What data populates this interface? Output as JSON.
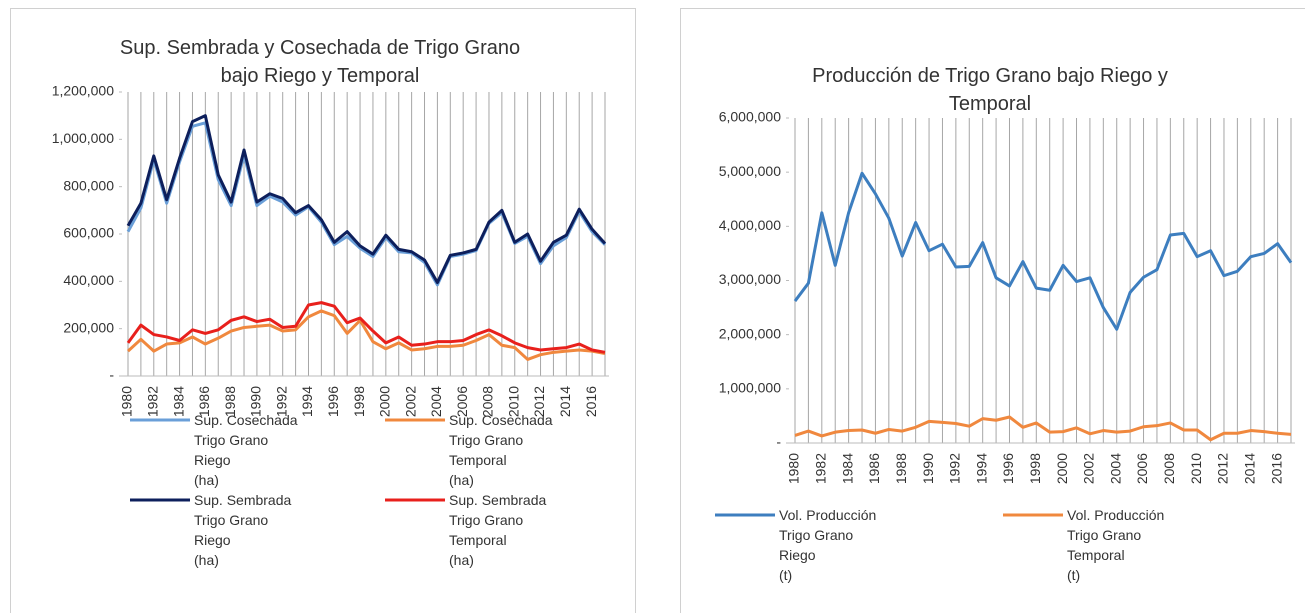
{
  "chart_data": [
    {
      "type": "line",
      "title": "Sup. Sembrada y Cosechada de Trigo Grano\nbajo Riego y Temporal",
      "categories": [
        "1980",
        null,
        "1982",
        null,
        "1984",
        null,
        "1986",
        null,
        "1988",
        null,
        "1990",
        null,
        "1992",
        null,
        "1994",
        null,
        "1996",
        null,
        "1998",
        null,
        "2000",
        null,
        "2002",
        null,
        "2004",
        null,
        "2006",
        null,
        "2008",
        null,
        "2010",
        null,
        "2012",
        null,
        "2014",
        null,
        "2016",
        null
      ],
      "series": [
        {
          "name": "Sup. Cosechada\nTrigo Grano\nRiego\n(ha)",
          "color": "#6a9fd8",
          "values": [
            610000,
            710000,
            915000,
            730000,
            905000,
            1055000,
            1070000,
            830000,
            720000,
            935000,
            720000,
            760000,
            735000,
            680000,
            715000,
            650000,
            555000,
            590000,
            540000,
            505000,
            585000,
            525000,
            520000,
            480000,
            385000,
            505000,
            515000,
            530000,
            645000,
            690000,
            560000,
            590000,
            475000,
            550000,
            585000,
            695000,
            610000,
            555000
          ]
        },
        {
          "name": "Sup. Cosechada\nTrigo Grano\nTemporal\n(ha)",
          "color": "#f0883e",
          "values": [
            105000,
            155000,
            105000,
            135000,
            140000,
            165000,
            135000,
            160000,
            190000,
            205000,
            210000,
            215000,
            190000,
            195000,
            250000,
            275000,
            255000,
            180000,
            235000,
            145000,
            115000,
            140000,
            110000,
            115000,
            125000,
            125000,
            130000,
            150000,
            175000,
            130000,
            120000,
            70000,
            90000,
            100000,
            105000,
            110000,
            105000,
            95000
          ]
        },
        {
          "name": "Sup. Sembrada\nTrigo Grano\nRiego\n(ha)",
          "color": "#0d1f5c",
          "values": [
            635000,
            730000,
            930000,
            745000,
            920000,
            1075000,
            1100000,
            850000,
            735000,
            955000,
            735000,
            770000,
            750000,
            690000,
            720000,
            660000,
            565000,
            610000,
            550000,
            515000,
            595000,
            535000,
            525000,
            490000,
            395000,
            510000,
            520000,
            535000,
            650000,
            700000,
            565000,
            600000,
            485000,
            565000,
            595000,
            705000,
            620000,
            560000
          ]
        },
        {
          "name": "Sup. Sembrada\nTrigo Grano\nTemporal\n(ha)",
          "color": "#e8201c",
          "values": [
            140000,
            215000,
            175000,
            165000,
            150000,
            195000,
            180000,
            195000,
            235000,
            250000,
            230000,
            240000,
            205000,
            210000,
            300000,
            310000,
            295000,
            225000,
            245000,
            190000,
            140000,
            165000,
            130000,
            135000,
            145000,
            145000,
            150000,
            175000,
            195000,
            170000,
            140000,
            120000,
            110000,
            115000,
            120000,
            135000,
            110000,
            100000
          ]
        }
      ],
      "ylim": [
        0,
        1200000
      ],
      "yticks": [
        {
          "value": 0,
          "label": "-"
        },
        {
          "value": 200000,
          "label": "200,000"
        },
        {
          "value": 400000,
          "label": "400,000"
        },
        {
          "value": 600000,
          "label": "600,000"
        },
        {
          "value": 800000,
          "label": "800,000"
        },
        {
          "value": 1000000,
          "label": "1,000,000"
        },
        {
          "value": 1200000,
          "label": "1,200,000"
        }
      ],
      "grid": true
    },
    {
      "type": "line",
      "title": "Producción de Trigo Grano bajo Riego y\nTemporal",
      "categories": [
        "1980",
        null,
        "1982",
        null,
        "1984",
        null,
        "1986",
        null,
        "1988",
        null,
        "1990",
        null,
        "1992",
        null,
        "1994",
        null,
        "1996",
        null,
        "1998",
        null,
        "2000",
        null,
        "2002",
        null,
        "2004",
        null,
        "2006",
        null,
        "2008",
        null,
        "2010",
        null,
        "2012",
        null,
        "2014",
        null,
        "2016",
        null
      ],
      "series": [
        {
          "name": "Vol. Producción\nTrigo Grano\nRiego\n(t)",
          "color": "#3d7ebf",
          "values": [
            2620000,
            2950000,
            4250000,
            3280000,
            4250000,
            4980000,
            4600000,
            4150000,
            3450000,
            4070000,
            3550000,
            3670000,
            3250000,
            3260000,
            3700000,
            3050000,
            2900000,
            3350000,
            2860000,
            2820000,
            3280000,
            2980000,
            3050000,
            2500000,
            2100000,
            2780000,
            3060000,
            3200000,
            3840000,
            3870000,
            3440000,
            3550000,
            3090000,
            3170000,
            3440000,
            3500000,
            3680000,
            3330000
          ]
        },
        {
          "name": "Vol. Producción\nTrigo Grano\nTemporal\n(t)",
          "color": "#f0883e",
          "values": [
            140000,
            220000,
            130000,
            200000,
            230000,
            240000,
            180000,
            250000,
            220000,
            290000,
            400000,
            380000,
            360000,
            310000,
            450000,
            420000,
            480000,
            290000,
            370000,
            200000,
            210000,
            280000,
            170000,
            230000,
            200000,
            220000,
            300000,
            320000,
            370000,
            240000,
            240000,
            60000,
            180000,
            180000,
            230000,
            210000,
            180000,
            160000
          ]
        }
      ],
      "ylim": [
        0,
        6000000
      ],
      "yticks": [
        {
          "value": 0,
          "label": "-"
        },
        {
          "value": 1000000,
          "label": "1,000,000"
        },
        {
          "value": 2000000,
          "label": "2,000,000"
        },
        {
          "value": 3000000,
          "label": "3,000,000"
        },
        {
          "value": 4000000,
          "label": "4,000,000"
        },
        {
          "value": 5000000,
          "label": "5,000,000"
        },
        {
          "value": 6000000,
          "label": "6,000,000"
        }
      ],
      "grid": true
    }
  ]
}
